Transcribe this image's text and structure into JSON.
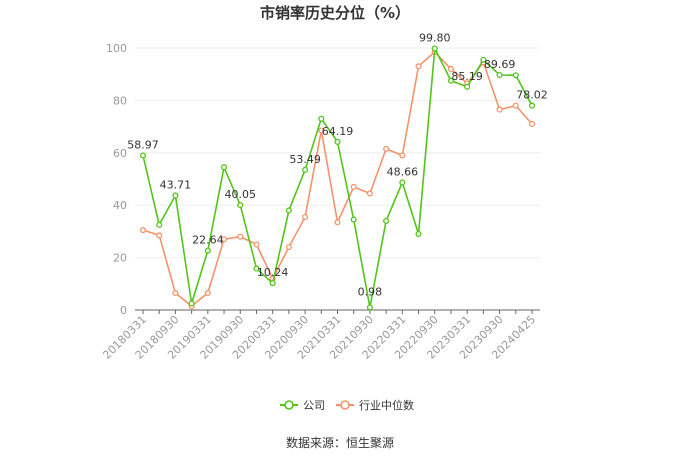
{
  "chart_data": {
    "type": "line",
    "title": "市销率历史分位（%）",
    "source": "数据来源：恒生聚源",
    "xlabel": "",
    "ylabel": "",
    "ylim": [
      0,
      100
    ],
    "yticks": [
      0,
      20,
      40,
      60,
      80,
      100
    ],
    "grid": true,
    "legend_position": "bottom",
    "tick_labels": [
      "20180331",
      "20180930",
      "20190331",
      "20190930",
      "20200331",
      "20200930",
      "20210331",
      "20210930",
      "20220331",
      "20220930",
      "20230331",
      "20230930",
      "20240425"
    ],
    "series": [
      {
        "name": "公司",
        "color": "#52c41a",
        "values": [
          58.97,
          32.5,
          43.71,
          2.5,
          22.64,
          54.5,
          40.05,
          15.8,
          10.24,
          38.0,
          53.49,
          73.0,
          64.19,
          34.5,
          0.98,
          34.0,
          48.66,
          29.0,
          99.8,
          87.5,
          85.19,
          95.5,
          89.69,
          89.6,
          78.02
        ],
        "labels": [
          "58.97",
          "",
          "43.71",
          "",
          "22.64",
          "",
          "40.05",
          "",
          "10.24",
          "",
          "53.49",
          "",
          "64.19",
          "",
          "0.98",
          "",
          "48.66",
          "",
          "99.80",
          "",
          "85.19",
          "",
          "89.69",
          "",
          "78.02"
        ]
      },
      {
        "name": "行业中位数",
        "color": "#f4936b",
        "values": [
          30.5,
          28.5,
          6.5,
          1.5,
          6.5,
          27.0,
          28.0,
          25.0,
          12.0,
          24.0,
          35.5,
          68.5,
          33.5,
          47.0,
          44.5,
          61.5,
          59.0,
          93.0,
          98.5,
          92.0,
          86.5,
          94.5,
          76.5,
          78.0,
          71.0
        ]
      }
    ]
  }
}
